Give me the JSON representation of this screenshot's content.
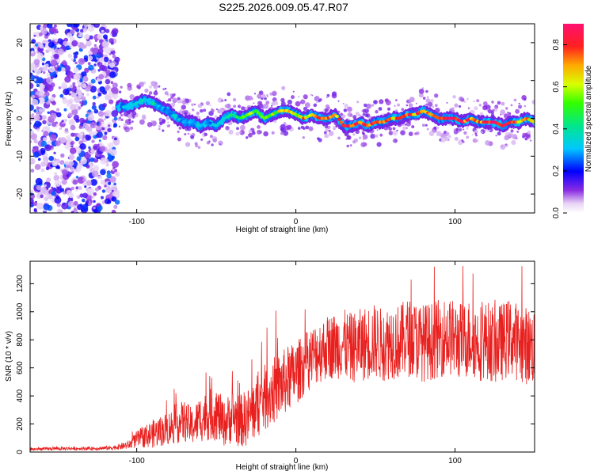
{
  "title": "S225.2026.009.05.47.R07",
  "chart_data": [
    {
      "type": "heatmap",
      "xlabel": "Height of straight line (km)",
      "ylabel": "Frequency (Hz)",
      "xlim": [
        -167,
        150
      ],
      "ylim": [
        -25,
        25
      ],
      "xticks": [
        -100,
        0,
        100
      ],
      "yticks": [
        -20,
        -10,
        0,
        10,
        20
      ],
      "colorbar": {
        "label": "Normalized spectral amplitude",
        "range": [
          0,
          0.9
        ],
        "ticks": [
          0.0,
          0.2,
          0.4,
          0.6,
          0.8
        ]
      },
      "trace": {
        "x": [
          -112,
          -105,
          -100,
          -95,
          -90,
          -85,
          -80,
          -75,
          -70,
          -65,
          -60,
          -55,
          -50,
          -45,
          -40,
          -35,
          -30,
          -25,
          -20,
          -15,
          -10,
          -5,
          0,
          5,
          10,
          15,
          20,
          25,
          30,
          35,
          40,
          45,
          50,
          55,
          60,
          65,
          70,
          75,
          80,
          85,
          90,
          95,
          100,
          105,
          110,
          115,
          120,
          125,
          130,
          135,
          140,
          145,
          150
        ],
        "frequency": [
          3,
          3,
          4,
          5,
          4,
          3,
          2,
          0,
          -1,
          -1,
          -2,
          -1,
          -2,
          0,
          1,
          0,
          1,
          2,
          0,
          1,
          2,
          2,
          1,
          0,
          1,
          0,
          0,
          1,
          -2,
          -2,
          -1,
          -2,
          -1,
          -1,
          0,
          0,
          1,
          1,
          2,
          1,
          0,
          0,
          0,
          -1,
          0,
          -1,
          -1,
          -1,
          -2,
          -1,
          -1,
          0,
          -1
        ],
        "amplitude": [
          0.3,
          0.35,
          0.4,
          0.35,
          0.4,
          0.3,
          0.3,
          0.35,
          0.3,
          0.3,
          0.35,
          0.3,
          0.35,
          0.4,
          0.45,
          0.5,
          0.55,
          0.6,
          0.55,
          0.6,
          0.65,
          0.7,
          0.65,
          0.75,
          0.7,
          0.8,
          0.75,
          0.8,
          0.85,
          0.9,
          0.85,
          0.8,
          0.85,
          0.8,
          0.75,
          0.8,
          0.85,
          0.8,
          0.75,
          0.8,
          0.85,
          0.8,
          0.85,
          0.9,
          0.85,
          0.8,
          0.85,
          0.9,
          0.85,
          0.8,
          0.75,
          0.7,
          0.7
        ]
      }
    },
    {
      "type": "line",
      "xlabel": "Height of straight line (km)",
      "ylabel": "SNR (10 * v/v)",
      "xlim": [
        -167,
        150
      ],
      "ylim": [
        0,
        1360
      ],
      "xticks": [
        -100,
        0,
        100
      ],
      "yticks": [
        0,
        200,
        400,
        600,
        800,
        1000,
        1200
      ],
      "color": "#e8201e",
      "series": [
        {
          "name": "SNR",
          "x": [
            -167,
            -150,
            -130,
            -115,
            -105,
            -100,
            -95,
            -90,
            -85,
            -80,
            -75,
            -70,
            -65,
            -60,
            -55,
            -50,
            -45,
            -40,
            -35,
            -30,
            -25,
            -20,
            -15,
            -10,
            -5,
            0,
            5,
            10,
            15,
            20,
            25,
            30,
            35,
            40,
            45,
            50,
            55,
            60,
            65,
            70,
            75,
            80,
            85,
            90,
            95,
            100,
            105,
            110,
            115,
            120,
            125,
            130,
            135,
            140,
            145,
            150
          ],
          "values": [
            20,
            25,
            25,
            30,
            50,
            90,
            110,
            130,
            150,
            170,
            200,
            220,
            180,
            240,
            260,
            280,
            200,
            260,
            220,
            250,
            320,
            380,
            430,
            470,
            520,
            560,
            620,
            680,
            720,
            750,
            760,
            770,
            740,
            760,
            780,
            790,
            760,
            800,
            780,
            820,
            800,
            780,
            790,
            810,
            830,
            800,
            790,
            820,
            780,
            800,
            760,
            790,
            820,
            780,
            760,
            750
          ],
          "spread": [
            10,
            12,
            12,
            15,
            30,
            60,
            80,
            100,
            110,
            120,
            140,
            150,
            130,
            170,
            180,
            200,
            160,
            200,
            190,
            210,
            230,
            240,
            240,
            240,
            240,
            230,
            220,
            220,
            230,
            230,
            240,
            250,
            250,
            260,
            270,
            270,
            260,
            280,
            270,
            280,
            280,
            280,
            280,
            280,
            280,
            280,
            280,
            280,
            280,
            280,
            280,
            280,
            280,
            280,
            280,
            280
          ]
        }
      ]
    }
  ]
}
